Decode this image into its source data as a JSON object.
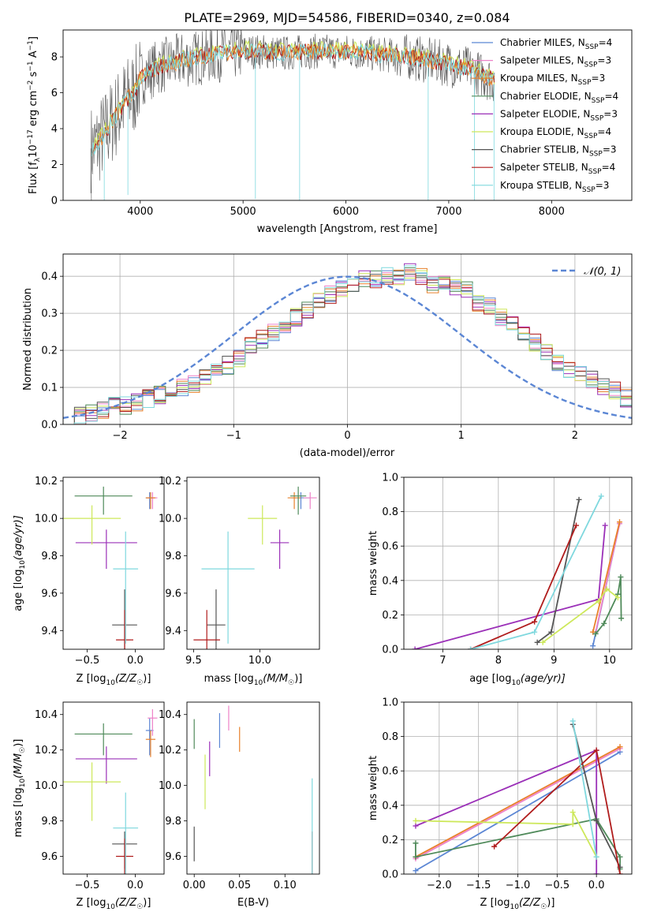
{
  "title": "PLATE=2969, MJD=54586, FIBERID=0340, z=0.084",
  "colors": {
    "Chabrier MILES": "#5b86d4",
    "Salpeter MILES": "#ee82c8",
    "Kroupa MILES": "#e8802a",
    "Chabrier ELODIE": "#4f8a5a",
    "Salpeter ELODIE": "#9b30b8",
    "Kroupa ELODIE": "#cde85a",
    "Chabrier STELIB": "#555555",
    "Salpeter STELIB": "#b01c1c",
    "Kroupa STELIB": "#7fd8de",
    "gaussian": "#5b86d4"
  },
  "chart_data": [
    {
      "type": "line",
      "xlabel": "wavelength [Angstrom, rest frame]",
      "ylabel": "Flux [f",
      "ylabel_sub": "λ",
      "ylabel_rest": "10",
      "ylabel_exp": "−17",
      "ylabel_tail": " erg cm",
      "ylabel_exp2": "−2",
      "ylabel_tail2": " s",
      "ylabel_exp3": "−1",
      "ylabel_tail3": " A",
      "ylabel_exp4": "−1",
      "ylabel_end": "]",
      "xlim": [
        3250,
        8780
      ],
      "ylim": [
        0,
        9.5
      ],
      "xticks": [
        "4000",
        "5000",
        "6000",
        "7000",
        "8000"
      ],
      "yticks": [
        "0",
        "2",
        "4",
        "6",
        "8"
      ],
      "continuum": {
        "wavelength": [
          3550,
          3650,
          3750,
          3850,
          3950,
          4000,
          4100,
          4200,
          4300,
          4400,
          4600,
          4800,
          5000,
          5200,
          5400,
          5600,
          5800,
          6000,
          6200,
          6400,
          6600,
          6800,
          7000,
          7200,
          7400,
          7445
        ],
        "flux": [
          2.9,
          3.7,
          4.6,
          5.5,
          6.1,
          6.8,
          7.2,
          7.5,
          7.6,
          7.8,
          8.0,
          8.2,
          8.3,
          8.3,
          8.2,
          8.3,
          8.3,
          8.3,
          8.2,
          8.1,
          8.0,
          7.8,
          7.6,
          7.3,
          6.8,
          6.7
        ]
      },
      "legend": [
        {
          "main": "Chabrier MILES, N",
          "sub": "SSP",
          "value": "=4"
        },
        {
          "main": "Salpeter MILES, N",
          "sub": "SSP",
          "value": "=3"
        },
        {
          "main": "Kroupa MILES, N",
          "sub": "SSP",
          "value": "=3"
        },
        {
          "main": "Chabrier ELODIE, N",
          "sub": "SSP",
          "value": "=4"
        },
        {
          "main": "Salpeter ELODIE, N",
          "sub": "SSP",
          "value": "=3"
        },
        {
          "main": "Kroupa ELODIE, N",
          "sub": "SSP",
          "value": "=4"
        },
        {
          "main": "Chabrier STELIB, N",
          "sub": "SSP",
          "value": "=3"
        },
        {
          "main": "Salpeter STELIB, N",
          "sub": "SSP",
          "value": "=4"
        },
        {
          "main": "Kroupa STELIB, N",
          "sub": "SSP",
          "value": "=3"
        }
      ]
    },
    {
      "type": "line",
      "xlabel": "(data-model)/error",
      "ylabel": "Normed distribution",
      "xlim": [
        -2.5,
        2.5
      ],
      "ylim": [
        0,
        0.46
      ],
      "xticks": [
        "−2",
        "−1",
        "0",
        "1",
        "2"
      ],
      "yticks": [
        "0.0",
        "0.1",
        "0.2",
        "0.3",
        "0.4"
      ],
      "grid": true,
      "legend_label": "𝒩(0, 1)",
      "gaussian_bin_centers": [
        -2.5,
        -2.3,
        -2.1,
        -1.9,
        -1.7,
        -1.5,
        -1.3,
        -1.1,
        -0.9,
        -0.7,
        -0.5,
        -0.3,
        -0.1,
        0.1,
        0.3,
        0.5,
        0.7,
        0.9,
        1.1,
        1.3,
        1.5,
        1.7,
        1.9,
        2.1,
        2.3,
        2.5
      ],
      "histogram_bin_edges_start": -2.5,
      "histogram_bin_width": 0.1,
      "histogram_values": [
        0.02,
        0.025,
        0.03,
        0.04,
        0.05,
        0.05,
        0.06,
        0.07,
        0.08,
        0.09,
        0.1,
        0.11,
        0.13,
        0.14,
        0.16,
        0.18,
        0.21,
        0.23,
        0.25,
        0.27,
        0.29,
        0.31,
        0.33,
        0.35,
        0.37,
        0.38,
        0.39,
        0.39,
        0.4,
        0.4,
        0.41,
        0.4,
        0.38,
        0.39,
        0.37,
        0.36,
        0.33,
        0.32,
        0.29,
        0.27,
        0.25,
        0.22,
        0.2,
        0.17,
        0.15,
        0.14,
        0.12,
        0.1,
        0.09,
        0.07
      ]
    },
    {
      "type": "scatter",
      "xlabel": "Z [log",
      "xlabel_sub": "10",
      "xlabel_tail": "(Z/Z",
      "xlabel_sun": "☉",
      "xlabel_end": ")]",
      "ylabel": "age  [log",
      "ylabel_sub": "10",
      "ylabel_tail": "(age/yr)]",
      "xlim": [
        -0.75,
        0.3
      ],
      "ylim": [
        9.3,
        10.22
      ],
      "xticks": [
        "−0.5",
        "0.0"
      ],
      "yticks": [
        "9.4",
        "9.6",
        "9.8",
        "10.0",
        "10.2"
      ]
    },
    {
      "type": "scatter",
      "xlabel": "mass [log",
      "xlabel_sub": "10",
      "xlabel_tail": "(M/M",
      "xlabel_sun": "☉",
      "xlabel_end": ")]",
      "xlim": [
        9.45,
        10.45
      ],
      "ylim": [
        9.3,
        10.22
      ],
      "xticks": [
        "9.5",
        "10.0"
      ],
      "yticks": [
        "9.4",
        "9.6",
        "9.8",
        "10.0",
        "10.2"
      ]
    },
    {
      "type": "line",
      "xlabel": "age  [log",
      "xlabel_sub": "10",
      "xlabel_tail": "(age/yr)]",
      "ylabel": "mass weight",
      "xlim": [
        6.3,
        10.4
      ],
      "ylim": [
        0,
        1
      ],
      "xticks": [
        "7",
        "8",
        "9",
        "10"
      ],
      "yticks": [
        "0.0",
        "0.2",
        "0.4",
        "0.6",
        "0.8",
        "1.0"
      ],
      "grid": true
    },
    {
      "type": "scatter",
      "xlabel": "Z [log",
      "xlabel_sub": "10",
      "xlabel_tail": "(Z/Z",
      "xlabel_sun": "☉",
      "xlabel_end": ")]",
      "ylabel": "mass [log",
      "ylabel_sub": "10",
      "ylabel_tail": "(M/M",
      "ylabel_sun": "☉",
      "ylabel_end": ")]",
      "xlim": [
        -0.75,
        0.3
      ],
      "ylim": [
        9.5,
        10.47
      ],
      "xticks": [
        "−0.5",
        "0.0"
      ],
      "yticks": [
        "9.6",
        "9.8",
        "10.0",
        "10.2",
        "10.4"
      ]
    },
    {
      "type": "scatter",
      "xlabel": "E(B-V)",
      "xlim": [
        -0.008,
        0.138
      ],
      "ylim": [
        9.5,
        10.47
      ],
      "xticks": [
        "0.00",
        "0.05",
        "0.10"
      ],
      "yticks": [
        "9.6",
        "9.8",
        "10.0",
        "10.2",
        "10.4"
      ]
    },
    {
      "type": "line",
      "xlabel": "Z [log",
      "xlabel_sub": "10",
      "xlabel_tail": "(Z/Z",
      "xlabel_sun": "☉",
      "xlabel_end": ")]",
      "ylabel": "mass weight",
      "xlim": [
        -2.45,
        0.45
      ],
      "ylim": [
        0,
        1
      ],
      "xticks": [
        "−2.0",
        "−1.5",
        "−1.0",
        "−0.5",
        "0.0"
      ],
      "yticks": [
        "0.0",
        "0.2",
        "0.4",
        "0.6",
        "0.8",
        "1.0"
      ],
      "grid": true
    }
  ],
  "models": [
    {
      "name": "Chabrier MILES",
      "Z": [
        0.15,
        0.04
      ],
      "age": [
        10.11,
        0.03
      ],
      "mass": [
        10.31,
        0.07
      ],
      "ebv": 0.028,
      "weights_age": [
        [
          9.7,
          0.02
        ],
        [
          10.18,
          0.73
        ]
      ],
      "weights_Z": [
        [
          -2.3,
          0.02
        ],
        [
          0.3,
          0.71
        ]
      ]
    },
    {
      "name": "Salpeter MILES",
      "Z": [
        0.18,
        0.05
      ],
      "age": [
        10.11,
        0.03
      ],
      "mass": [
        10.38,
        0.05
      ],
      "ebv": 0.038,
      "weights_age": [
        [
          9.75,
          0.1
        ],
        [
          10.18,
          0.73
        ]
      ],
      "weights_Z": [
        [
          -2.3,
          0.09
        ],
        [
          0.3,
          0.73
        ]
      ]
    },
    {
      "name": "Kroupa MILES",
      "Z": [
        0.16,
        0.05
      ],
      "age": [
        10.11,
        0.03
      ],
      "mass": [
        10.26,
        0.05
      ],
      "ebv": 0.05,
      "weights_age": [
        [
          9.7,
          0.1
        ],
        [
          10.18,
          0.74
        ]
      ],
      "weights_Z": [
        [
          -2.3,
          0.1
        ],
        [
          0.3,
          0.74
        ]
      ]
    },
    {
      "name": "Chabrier ELODIE",
      "Z": [
        -0.33,
        0.3
      ],
      "age": [
        10.12,
        0.05
      ],
      "mass": [
        10.29,
        0.06
      ],
      "ebv": 0.0,
      "weights_age": [
        [
          9.75,
          0.09
        ],
        [
          9.9,
          0.15
        ],
        [
          10.15,
          0.32
        ],
        [
          10.2,
          0.42
        ],
        [
          10.21,
          0.18
        ]
      ],
      "weights_Z": [
        [
          -2.3,
          0.18
        ],
        [
          -2.3,
          0.1
        ],
        [
          0.0,
          0.32
        ],
        [
          0.3,
          0.1
        ],
        [
          0.3,
          0.03
        ]
      ]
    },
    {
      "name": "Salpeter ELODIE",
      "Z": [
        -0.3,
        0.32
      ],
      "age": [
        9.87,
        0.07
      ],
      "mass": [
        10.15,
        0.07
      ],
      "ebv": 0.017,
      "weights_age": [
        [
          6.5,
          0.0
        ],
        [
          9.8,
          0.29
        ],
        [
          9.92,
          0.72
        ]
      ],
      "weights_Z": [
        [
          -2.3,
          0.28
        ],
        [
          0.0,
          0.72
        ],
        [
          0.0,
          0.0
        ]
      ]
    },
    {
      "name": "Kroupa ELODIE",
      "Z": [
        -0.45,
        0.3
      ],
      "age": [
        10.0,
        0.07
      ],
      "mass": [
        10.02,
        0.11
      ],
      "ebv": 0.012,
      "weights_age": [
        [
          8.8,
          0.04
        ],
        [
          9.8,
          0.28
        ],
        [
          9.95,
          0.35
        ],
        [
          10.15,
          0.3
        ]
      ],
      "weights_Z": [
        [
          -2.3,
          0.31
        ],
        [
          -0.3,
          0.29
        ],
        [
          -0.3,
          0.36
        ],
        [
          -0.0,
          0.1
        ]
      ]
    },
    {
      "name": "Chabrier STELIB",
      "Z": [
        -0.11,
        0.13
      ],
      "age": [
        9.43,
        0.19
      ],
      "mass": [
        9.67,
        0.07
      ],
      "ebv": 0.0,
      "weights_age": [
        [
          8.7,
          0.04
        ],
        [
          8.95,
          0.1
        ],
        [
          9.45,
          0.87
        ]
      ],
      "weights_Z": [
        [
          -0.3,
          0.87
        ],
        [
          0.0,
          0.31
        ],
        [
          0.3,
          0.04
        ]
      ]
    },
    {
      "name": "Salpeter STELIB",
      "Z": [
        -0.11,
        0.09
      ],
      "age": [
        9.35,
        0.16
      ],
      "mass": [
        9.6,
        0.1
      ],
      "ebv": 0.13,
      "weights_age": [
        [
          7.5,
          0.0
        ],
        [
          8.65,
          0.16
        ],
        [
          9.4,
          0.72
        ]
      ],
      "weights_Z": [
        [
          -1.3,
          0.16
        ],
        [
          -0.0,
          0.72
        ],
        [
          0.3,
          0.0
        ]
      ]
    },
    {
      "name": "Kroupa STELIB",
      "Z": [
        -0.1,
        0.13
      ],
      "age": [
        9.73,
        0.2
      ],
      "mass": [
        9.76,
        0.2
      ],
      "ebv": 0.13,
      "weights_age": [
        [
          7.5,
          0.0
        ],
        [
          8.65,
          0.1
        ],
        [
          9.85,
          0.89
        ]
      ],
      "weights_Z": [
        [
          -0.3,
          0.89
        ],
        [
          -0.0,
          0.1
        ]
      ]
    }
  ]
}
